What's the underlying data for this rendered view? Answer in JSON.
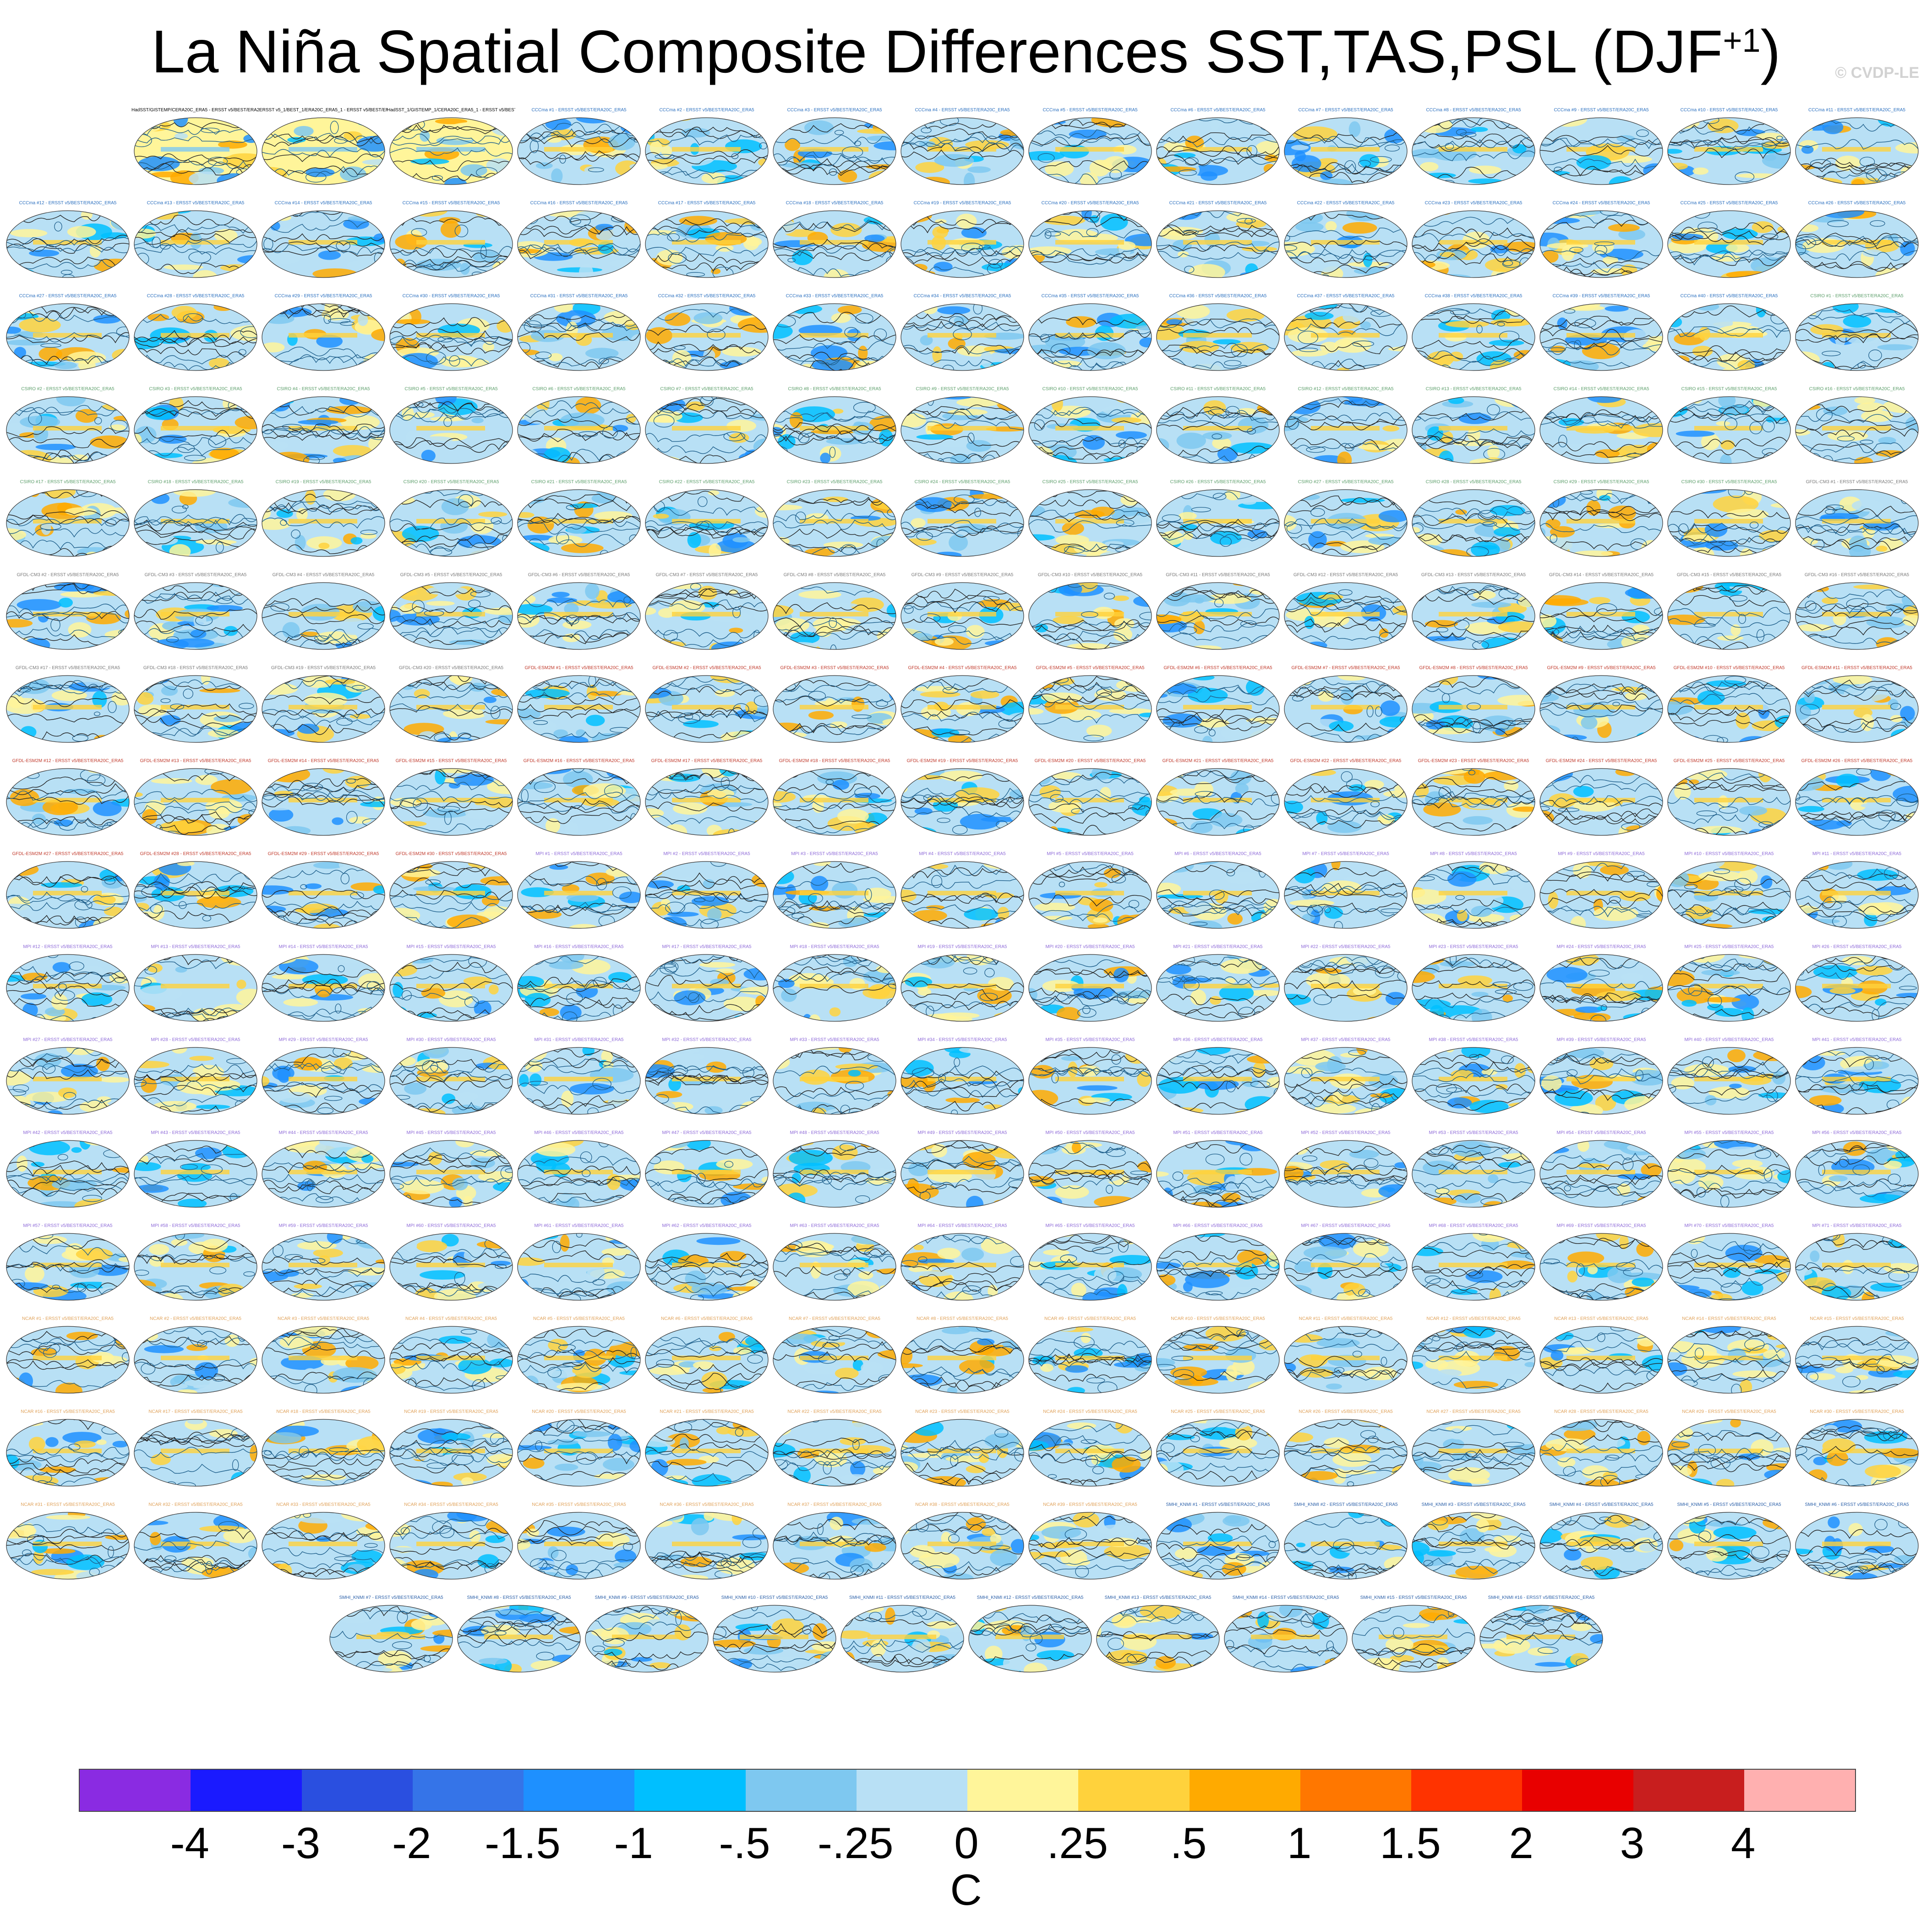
{
  "figure": {
    "title_main": "La Niña Spatial Composite Differences SST,TAS,PSL (DJF",
    "title_sup": "+1",
    "title_end": ")",
    "watermark": "© CVDP-LE",
    "units": "C"
  },
  "panel_rows": [
    {
      "count": 14,
      "titles": [
        "HadSST/GISTEMP/CERA20C_ERA5 - ERSST v5/BEST/ERA20C_ERA5",
        "ERSST v5_1/BEST_1/ERA20C_ERA5_1 - ERSST v5/BEST/ERA20C_ERA5",
        "HadSST_1/GISTEMP_1/CERA20C_ERA5_1 - ERSST v5/BEST/ERA20C_ERA5",
        "CCCma #1 - ERSST v5/BEST/ERA20C_ERA5",
        "CCCma #2 - ERSST v5/BEST/ERA20C_ERA5",
        "CCCma #3 - ERSST v5/BEST/ERA20C_ERA5",
        "CCCma #4 - ERSST v5/BEST/ERA20C_ERA5",
        "CCCma #5 - ERSST v5/BEST/ERA20C_ERA5",
        "CCCma #6 - ERSST v5/BEST/ERA20C_ERA5",
        "CCCma #7 - ERSST v5/BEST/ERA20C_ERA5",
        "CCCma #8 - ERSST v5/BEST/ERA20C_ERA5",
        "CCCma #9 - ERSST v5/BEST/ERA20C_ERA5",
        "CCCma #10 - ERSST v5/BEST/ERA20C_ERA5",
        "CCCma #11 - ERSST v5/BEST/ERA20C_ERA5"
      ]
    },
    {
      "count": 15,
      "titles": [
        "CCCma #12 - ERSST v5/BEST/ERA20C_ERA5",
        "CCCma #13 - ERSST v5/BEST/ERA20C_ERA5",
        "CCCma #14 - ERSST v5/BEST/ERA20C_ERA5",
        "CCCma #15 - ERSST v5/BEST/ERA20C_ERA5",
        "CCCma #16 - ERSST v5/BEST/ERA20C_ERA5",
        "CCCma #17 - ERSST v5/BEST/ERA20C_ERA5",
        "CCCma #18 - ERSST v5/BEST/ERA20C_ERA5",
        "CCCma #19 - ERSST v5/BEST/ERA20C_ERA5",
        "CCCma #20 - ERSST v5/BEST/ERA20C_ERA5",
        "CCCma #21 - ERSST v5/BEST/ERA20C_ERA5",
        "CCCma #22 - ERSST v5/BEST/ERA20C_ERA5",
        "CCCma #23 - ERSST v5/BEST/ERA20C_ERA5",
        "CCCma #24 - ERSST v5/BEST/ERA20C_ERA5",
        "CCCma #25 - ERSST v5/BEST/ERA20C_ERA5",
        "CCCma #26 - ERSST v5/BEST/ERA20C_ERA5"
      ]
    },
    {
      "count": 15,
      "titles": [
        "CCCma #27 - ERSST v5/BEST/ERA20C_ERA5",
        "CCCma #28 - ERSST v5/BEST/ERA20C_ERA5",
        "CCCma #29 - ERSST v5/BEST/ERA20C_ERA5",
        "CCCma #30 - ERSST v5/BEST/ERA20C_ERA5",
        "CCCma #31 - ERSST v5/BEST/ERA20C_ERA5",
        "CCCma #32 - ERSST v5/BEST/ERA20C_ERA5",
        "CCCma #33 - ERSST v5/BEST/ERA20C_ERA5",
        "CCCma #34 - ERSST v5/BEST/ERA20C_ERA5",
        "CCCma #35 - ERSST v5/BEST/ERA20C_ERA5",
        "CCCma #36 - ERSST v5/BEST/ERA20C_ERA5",
        "CCCma #37 - ERSST v5/BEST/ERA20C_ERA5",
        "CCCma #38 - ERSST v5/BEST/ERA20C_ERA5",
        "CCCma #39 - ERSST v5/BEST/ERA20C_ERA5",
        "CCCma #40 - ERSST v5/BEST/ERA20C_ERA5",
        "CSIRO #1 - ERSST v5/BEST/ERA20C_ERA5"
      ]
    },
    {
      "count": 15,
      "titles": [
        "CSIRO #2 - ERSST v5/BEST/ERA20C_ERA5",
        "CSIRO #3 - ERSST v5/BEST/ERA20C_ERA5",
        "CSIRO #4 - ERSST v5/BEST/ERA20C_ERA5",
        "CSIRO #5 - ERSST v5/BEST/ERA20C_ERA5",
        "CSIRO #6 - ERSST v5/BEST/ERA20C_ERA5",
        "CSIRO #7 - ERSST v5/BEST/ERA20C_ERA5",
        "CSIRO #8 - ERSST v5/BEST/ERA20C_ERA5",
        "CSIRO #9 - ERSST v5/BEST/ERA20C_ERA5",
        "CSIRO #10 - ERSST v5/BEST/ERA20C_ERA5",
        "CSIRO #11 - ERSST v5/BEST/ERA20C_ERA5",
        "CSIRO #12 - ERSST v5/BEST/ERA20C_ERA5",
        "CSIRO #13 - ERSST v5/BEST/ERA20C_ERA5",
        "CSIRO #14 - ERSST v5/BEST/ERA20C_ERA5",
        "CSIRO #15 - ERSST v5/BEST/ERA20C_ERA5",
        "CSIRO #16 - ERSST v5/BEST/ERA20C_ERA5"
      ]
    },
    {
      "count": 15,
      "titles": [
        "CSIRO #17 - ERSST v5/BEST/ERA20C_ERA5",
        "CSIRO #18 - ERSST v5/BEST/ERA20C_ERA5",
        "CSIRO #19 - ERSST v5/BEST/ERA20C_ERA5",
        "CSIRO #20 - ERSST v5/BEST/ERA20C_ERA5",
        "CSIRO #21 - ERSST v5/BEST/ERA20C_ERA5",
        "CSIRO #22 - ERSST v5/BEST/ERA20C_ERA5",
        "CSIRO #23 - ERSST v5/BEST/ERA20C_ERA5",
        "CSIRO #24 - ERSST v5/BEST/ERA20C_ERA5",
        "CSIRO #25 - ERSST v5/BEST/ERA20C_ERA5",
        "CSIRO #26 - ERSST v5/BEST/ERA20C_ERA5",
        "CSIRO #27 - ERSST v5/BEST/ERA20C_ERA5",
        "CSIRO #28 - ERSST v5/BEST/ERA20C_ERA5",
        "CSIRO #29 - ERSST v5/BEST/ERA20C_ERA5",
        "CSIRO #30 - ERSST v5/BEST/ERA20C_ERA5",
        "GFDL-CM3 #1 - ERSST v5/BEST/ERA20C_ERA5"
      ]
    },
    {
      "count": 15,
      "titles": [
        "GFDL-CM3 #2 - ERSST v5/BEST/ERA20C_ERA5",
        "GFDL-CM3 #3 - ERSST v5/BEST/ERA20C_ERA5",
        "GFDL-CM3 #4 - ERSST v5/BEST/ERA20C_ERA5",
        "GFDL-CM3 #5 - ERSST v5/BEST/ERA20C_ERA5",
        "GFDL-CM3 #6 - ERSST v5/BEST/ERA20C_ERA5",
        "GFDL-CM3 #7 - ERSST v5/BEST/ERA20C_ERA5",
        "GFDL-CM3 #8 - ERSST v5/BEST/ERA20C_ERA5",
        "GFDL-CM3 #9 - ERSST v5/BEST/ERA20C_ERA5",
        "GFDL-CM3 #10 - ERSST v5/BEST/ERA20C_ERA5",
        "GFDL-CM3 #11 - ERSST v5/BEST/ERA20C_ERA5",
        "GFDL-CM3 #12 - ERSST v5/BEST/ERA20C_ERA5",
        "GFDL-CM3 #13 - ERSST v5/BEST/ERA20C_ERA5",
        "GFDL-CM3 #14 - ERSST v5/BEST/ERA20C_ERA5",
        "GFDL-CM3 #15 - ERSST v5/BEST/ERA20C_ERA5",
        "GFDL-CM3 #16 - ERSST v5/BEST/ERA20C_ERA5"
      ]
    },
    {
      "count": 15,
      "titles": [
        "GFDL-CM3 #17 - ERSST v5/BEST/ERA20C_ERA5",
        "GFDL-CM3 #18 - ERSST v5/BEST/ERA20C_ERA5",
        "GFDL-CM3 #19 - ERSST v5/BEST/ERA20C_ERA5",
        "GFDL-CM3 #20 - ERSST v5/BEST/ERA20C_ERA5",
        "GFDL-ESM2M #1 - ERSST v5/BEST/ERA20C_ERA5",
        "GFDL-ESM2M #2 - ERSST v5/BEST/ERA20C_ERA5",
        "GFDL-ESM2M #3 - ERSST v5/BEST/ERA20C_ERA5",
        "GFDL-ESM2M #4 - ERSST v5/BEST/ERA20C_ERA5",
        "GFDL-ESM2M #5 - ERSST v5/BEST/ERA20C_ERA5",
        "GFDL-ESM2M #6 - ERSST v5/BEST/ERA20C_ERA5",
        "GFDL-ESM2M #7 - ERSST v5/BEST/ERA20C_ERA5",
        "GFDL-ESM2M #8 - ERSST v5/BEST/ERA20C_ERA5",
        "GFDL-ESM2M #9 - ERSST v5/BEST/ERA20C_ERA5",
        "GFDL-ESM2M #10 - ERSST v5/BEST/ERA20C_ERA5",
        "GFDL-ESM2M #11 - ERSST v5/BEST/ERA20C_ERA5"
      ]
    },
    {
      "count": 15,
      "titles": [
        "GFDL-ESM2M #12 - ERSST v5/BEST/ERA20C_ERA5",
        "GFDL-ESM2M #13 - ERSST v5/BEST/ERA20C_ERA5",
        "GFDL-ESM2M #14 - ERSST v5/BEST/ERA20C_ERA5",
        "GFDL-ESM2M #15 - ERSST v5/BEST/ERA20C_ERA5",
        "GFDL-ESM2M #16 - ERSST v5/BEST/ERA20C_ERA5",
        "GFDL-ESM2M #17 - ERSST v5/BEST/ERA20C_ERA5",
        "GFDL-ESM2M #18 - ERSST v5/BEST/ERA20C_ERA5",
        "GFDL-ESM2M #19 - ERSST v5/BEST/ERA20C_ERA5",
        "GFDL-ESM2M #20 - ERSST v5/BEST/ERA20C_ERA5",
        "GFDL-ESM2M #21 - ERSST v5/BEST/ERA20C_ERA5",
        "GFDL-ESM2M #22 - ERSST v5/BEST/ERA20C_ERA5",
        "GFDL-ESM2M #23 - ERSST v5/BEST/ERA20C_ERA5",
        "GFDL-ESM2M #24 - ERSST v5/BEST/ERA20C_ERA5",
        "GFDL-ESM2M #25 - ERSST v5/BEST/ERA20C_ERA5",
        "GFDL-ESM2M #26 - ERSST v5/BEST/ERA20C_ERA5"
      ]
    },
    {
      "count": 15,
      "titles": [
        "GFDL-ESM2M #27 - ERSST v5/BEST/ERA20C_ERA5",
        "GFDL-ESM2M #28 - ERSST v5/BEST/ERA20C_ERA5",
        "GFDL-ESM2M #29 - ERSST v5/BEST/ERA20C_ERA5",
        "GFDL-ESM2M #30 - ERSST v5/BEST/ERA20C_ERA5",
        "MPI #1 - ERSST v5/BEST/ERA20C_ERA5",
        "MPI #2 - ERSST v5/BEST/ERA20C_ERA5",
        "MPI #3 - ERSST v5/BEST/ERA20C_ERA5",
        "MPI #4 - ERSST v5/BEST/ERA20C_ERA5",
        "MPI #5 - ERSST v5/BEST/ERA20C_ERA5",
        "MPI #6 - ERSST v5/BEST/ERA20C_ERA5",
        "MPI #7 - ERSST v5/BEST/ERA20C_ERA5",
        "MPI #8 - ERSST v5/BEST/ERA20C_ERA5",
        "MPI #9 - ERSST v5/BEST/ERA20C_ERA5",
        "MPI #10 - ERSST v5/BEST/ERA20C_ERA5",
        "MPI #11 - ERSST v5/BEST/ERA20C_ERA5"
      ]
    },
    {
      "count": 15,
      "titles": [
        "MPI #12 - ERSST v5/BEST/ERA20C_ERA5",
        "MPI #13 - ERSST v5/BEST/ERA20C_ERA5",
        "MPI #14 - ERSST v5/BEST/ERA20C_ERA5",
        "MPI #15 - ERSST v5/BEST/ERA20C_ERA5",
        "MPI #16 - ERSST v5/BEST/ERA20C_ERA5",
        "MPI #17 - ERSST v5/BEST/ERA20C_ERA5",
        "MPI #18 - ERSST v5/BEST/ERA20C_ERA5",
        "MPI #19 - ERSST v5/BEST/ERA20C_ERA5",
        "MPI #20 - ERSST v5/BEST/ERA20C_ERA5",
        "MPI #21 - ERSST v5/BEST/ERA20C_ERA5",
        "MPI #22 - ERSST v5/BEST/ERA20C_ERA5",
        "MPI #23 - ERSST v5/BEST/ERA20C_ERA5",
        "MPI #24 - ERSST v5/BEST/ERA20C_ERA5",
        "MPI #25 - ERSST v5/BEST/ERA20C_ERA5",
        "MPI #26 - ERSST v5/BEST/ERA20C_ERA5"
      ]
    },
    {
      "count": 15,
      "titles": [
        "MPI #27 - ERSST v5/BEST/ERA20C_ERA5",
        "MPI #28 - ERSST v5/BEST/ERA20C_ERA5",
        "MPI #29 - ERSST v5/BEST/ERA20C_ERA5",
        "MPI #30 - ERSST v5/BEST/ERA20C_ERA5",
        "MPI #31 - ERSST v5/BEST/ERA20C_ERA5",
        "MPI #32 - ERSST v5/BEST/ERA20C_ERA5",
        "MPI #33 - ERSST v5/BEST/ERA20C_ERA5",
        "MPI #34 - ERSST v5/BEST/ERA20C_ERA5",
        "MPI #35 - ERSST v5/BEST/ERA20C_ERA5",
        "MPI #36 - ERSST v5/BEST/ERA20C_ERA5",
        "MPI #37 - ERSST v5/BEST/ERA20C_ERA5",
        "MPI #38 - ERSST v5/BEST/ERA20C_ERA5",
        "MPI #39 - ERSST v5/BEST/ERA20C_ERA5",
        "MPI #40 - ERSST v5/BEST/ERA20C_ERA5",
        "MPI #41 - ERSST v5/BEST/ERA20C_ERA5"
      ]
    },
    {
      "count": 15,
      "titles": [
        "MPI #42 - ERSST v5/BEST/ERA20C_ERA5",
        "MPI #43 - ERSST v5/BEST/ERA20C_ERA5",
        "MPI #44 - ERSST v5/BEST/ERA20C_ERA5",
        "MPI #45 - ERSST v5/BEST/ERA20C_ERA5",
        "MPI #46 - ERSST v5/BEST/ERA20C_ERA5",
        "MPI #47 - ERSST v5/BEST/ERA20C_ERA5",
        "MPI #48 - ERSST v5/BEST/ERA20C_ERA5",
        "MPI #49 - ERSST v5/BEST/ERA20C_ERA5",
        "MPI #50 - ERSST v5/BEST/ERA20C_ERA5",
        "MPI #51 - ERSST v5/BEST/ERA20C_ERA5",
        "MPI #52 - ERSST v5/BEST/ERA20C_ERA5",
        "MPI #53 - ERSST v5/BEST/ERA20C_ERA5",
        "MPI #54 - ERSST v5/BEST/ERA20C_ERA5",
        "MPI #55 - ERSST v5/BEST/ERA20C_ERA5",
        "MPI #56 - ERSST v5/BEST/ERA20C_ERA5"
      ]
    },
    {
      "count": 15,
      "titles": [
        "MPI #57 - ERSST v5/BEST/ERA20C_ERA5",
        "MPI #58 - ERSST v5/BEST/ERA20C_ERA5",
        "MPI #59 - ERSST v5/BEST/ERA20C_ERA5",
        "MPI #60 - ERSST v5/BEST/ERA20C_ERA5",
        "MPI #61 - ERSST v5/BEST/ERA20C_ERA5",
        "MPI #62 - ERSST v5/BEST/ERA20C_ERA5",
        "MPI #63 - ERSST v5/BEST/ERA20C_ERA5",
        "MPI #64 - ERSST v5/BEST/ERA20C_ERA5",
        "MPI #65 - ERSST v5/BEST/ERA20C_ERA5",
        "MPI #66 - ERSST v5/BEST/ERA20C_ERA5",
        "MPI #67 - ERSST v5/BEST/ERA20C_ERA5",
        "MPI #68 - ERSST v5/BEST/ERA20C_ERA5",
        "MPI #69 - ERSST v5/BEST/ERA20C_ERA5",
        "MPI #70 - ERSST v5/BEST/ERA20C_ERA5",
        "MPI #71 - ERSST v5/BEST/ERA20C_ERA5"
      ]
    },
    {
      "count": 15,
      "titles": [
        "NCAR #1 - ERSST v5/BEST/ERA20C_ERA5",
        "NCAR #2 - ERSST v5/BEST/ERA20C_ERA5",
        "NCAR #3 - ERSST v5/BEST/ERA20C_ERA5",
        "NCAR #4 - ERSST v5/BEST/ERA20C_ERA5",
        "NCAR #5 - ERSST v5/BEST/ERA20C_ERA5",
        "NCAR #6 - ERSST v5/BEST/ERA20C_ERA5",
        "NCAR #7 - ERSST v5/BEST/ERA20C_ERA5",
        "NCAR #8 - ERSST v5/BEST/ERA20C_ERA5",
        "NCAR #9 - ERSST v5/BEST/ERA20C_ERA5",
        "NCAR #10 - ERSST v5/BEST/ERA20C_ERA5",
        "NCAR #11 - ERSST v5/BEST/ERA20C_ERA5",
        "NCAR #12 - ERSST v5/BEST/ERA20C_ERA5",
        "NCAR #13 - ERSST v5/BEST/ERA20C_ERA5",
        "NCAR #14 - ERSST v5/BEST/ERA20C_ERA5",
        "NCAR #15 - ERSST v5/BEST/ERA20C_ERA5"
      ]
    },
    {
      "count": 15,
      "titles": [
        "NCAR #16 - ERSST v5/BEST/ERA20C_ERA5",
        "NCAR #17 - ERSST v5/BEST/ERA20C_ERA5",
        "NCAR #18 - ERSST v5/BEST/ERA20C_ERA5",
        "NCAR #19 - ERSST v5/BEST/ERA20C_ERA5",
        "NCAR #20 - ERSST v5/BEST/ERA20C_ERA5",
        "NCAR #21 - ERSST v5/BEST/ERA20C_ERA5",
        "NCAR #22 - ERSST v5/BEST/ERA20C_ERA5",
        "NCAR #23 - ERSST v5/BEST/ERA20C_ERA5",
        "NCAR #24 - ERSST v5/BEST/ERA20C_ERA5",
        "NCAR #25 - ERSST v5/BEST/ERA20C_ERA5",
        "NCAR #26 - ERSST v5/BEST/ERA20C_ERA5",
        "NCAR #27 - ERSST v5/BEST/ERA20C_ERA5",
        "NCAR #28 - ERSST v5/BEST/ERA20C_ERA5",
        "NCAR #29 - ERSST v5/BEST/ERA20C_ERA5",
        "NCAR #30 - ERSST v5/BEST/ERA20C_ERA5"
      ]
    },
    {
      "count": 15,
      "titles": [
        "NCAR #31 - ERSST v5/BEST/ERA20C_ERA5",
        "NCAR #32 - ERSST v5/BEST/ERA20C_ERA5",
        "NCAR #33 - ERSST v5/BEST/ERA20C_ERA5",
        "NCAR #34 - ERSST v5/BEST/ERA20C_ERA5",
        "NCAR #35 - ERSST v5/BEST/ERA20C_ERA5",
        "NCAR #36 - ERSST v5/BEST/ERA20C_ERA5",
        "NCAR #37 - ERSST v5/BEST/ERA20C_ERA5",
        "NCAR #38 - ERSST v5/BEST/ERA20C_ERA5",
        "NCAR #39 - ERSST v5/BEST/ERA20C_ERA5",
        "SMHI_KNMI #1 - ERSST v5/BEST/ERA20C_ERA5",
        "SMHI_KNMI #2 - ERSST v5/BEST/ERA20C_ERA5",
        "SMHI_KNMI #3 - ERSST v5/BEST/ERA20C_ERA5",
        "SMHI_KNMI #4 - ERSST v5/BEST/ERA20C_ERA5",
        "SMHI_KNMI #5 - ERSST v5/BEST/ERA20C_ERA5",
        "SMHI_KNMI #6 - ERSST v5/BEST/ERA20C_ERA5"
      ]
    },
    {
      "count": 10,
      "titles": [
        "SMHI_KNMI #7 - ERSST v5/BEST/ERA20C_ERA5",
        "SMHI_KNMI #8 - ERSST v5/BEST/ERA20C_ERA5",
        "SMHI_KNMI #9 - ERSST v5/BEST/ERA20C_ERA5",
        "SMHI_KNMI #10 - ERSST v5/BEST/ERA20C_ERA5",
        "SMHI_KNMI #11 - ERSST v5/BEST/ERA20C_ERA5",
        "SMHI_KNMI #12 - ERSST v5/BEST/ERA20C_ERA5",
        "SMHI_KNMI #13 - ERSST v5/BEST/ERA20C_ERA5",
        "SMHI_KNMI #14 - ERSST v5/BEST/ERA20C_ERA5",
        "SMHI_KNMI #15 - ERSST v5/BEST/ERA20C_ERA5",
        "SMHI_KNMI #16 - ERSST v5/BEST/ERA20C_ERA5"
      ]
    }
  ],
  "title_colors": {
    "HadSST": "#000000",
    "ERSST": "#000000",
    "CCCma": "#2a6fbf",
    "CSIRO": "#5c9e6a",
    "GFDL-CM3": "#7a7a7a",
    "GFDL-ESM2M": "#c0392b",
    "MPI": "#8e6ad8",
    "NCAR": "#e0a25a",
    "SMHI_KNMI": "#2a5fa8"
  },
  "colorbar": {
    "colors": [
      "#8a2be2",
      "#1a1aff",
      "#2a4fe0",
      "#3574e8",
      "#1e90ff",
      "#00bfff",
      "#7ec8f0",
      "#b8e0f5",
      "#fff59a",
      "#ffd23c",
      "#ffaa00",
      "#ff7700",
      "#ff3300",
      "#e80000",
      "#c81e1e",
      "#ffb0b0"
    ],
    "labels": [
      "-4",
      "-3",
      "-2",
      "-1.5",
      "-1",
      "-.5",
      "-.25",
      "0",
      ".25",
      ".5",
      "1",
      "1.5",
      "2",
      "3",
      "4"
    ]
  }
}
